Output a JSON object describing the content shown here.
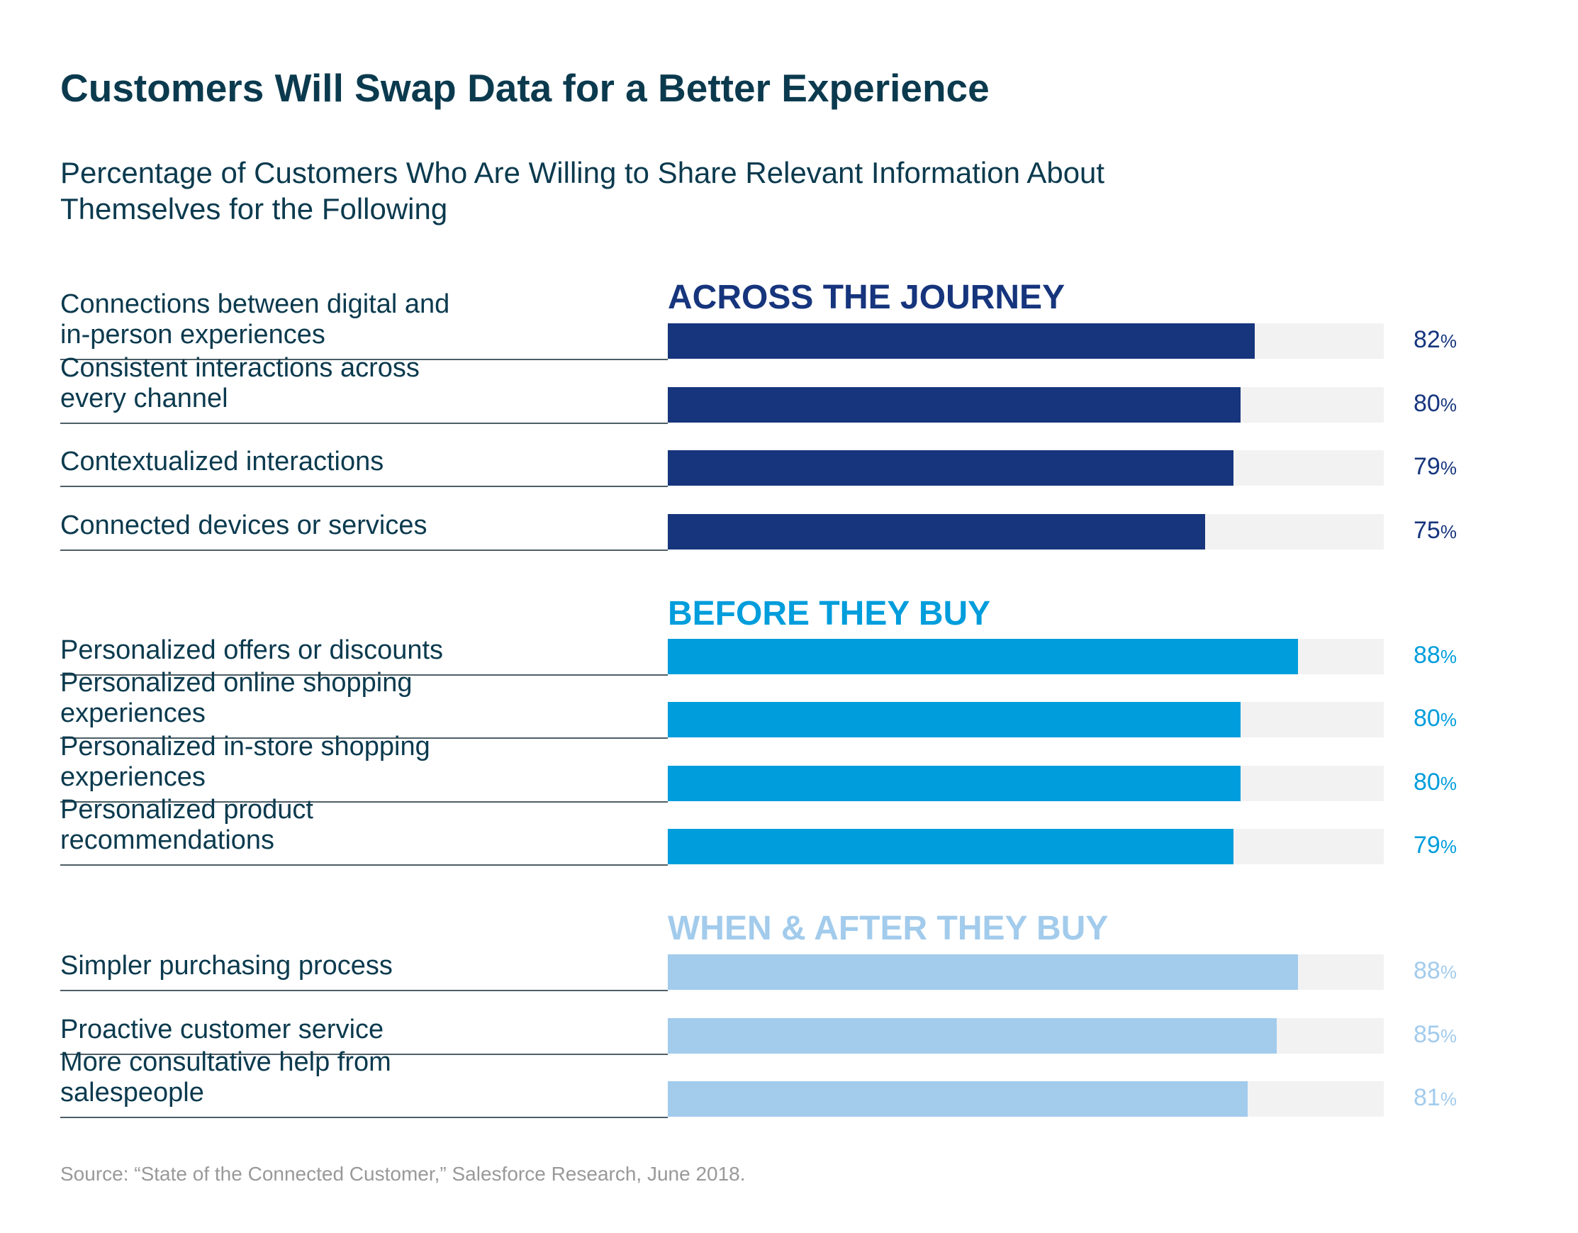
{
  "title": "Customers Will Swap Data for a Better Experience",
  "subtitle": "Percentage of Customers Who Are Willing to Share Relevant Information About Themselves for the Following",
  "source": "Source: “State of the Connected Customer,” Salesforce Research, June 2018.",
  "chart_data": {
    "type": "bar",
    "orientation": "horizontal",
    "value_range": [
      0,
      100
    ],
    "unit": "%",
    "groups": [
      {
        "name": "ACROSS THE JOURNEY",
        "color": "#16357d",
        "items": [
          {
            "label": "Connections between digital and in-person experiences",
            "value": 82,
            "display": "82"
          },
          {
            "label": "Consistent interactions across every channel",
            "value": 80,
            "display": "80"
          },
          {
            "label": "Contextualized interactions",
            "value": 79,
            "display": "79"
          },
          {
            "label": "Connected devices or services",
            "value": 75,
            "display": "75"
          }
        ]
      },
      {
        "name": "BEFORE THEY BUY",
        "color": "#009ddc",
        "items": [
          {
            "label": "Personalized offers or discounts",
            "value": 88,
            "display": "88"
          },
          {
            "label": "Personalized online shopping experiences",
            "value": 80,
            "display": "80"
          },
          {
            "label": "Personalized in-store shopping experiences",
            "value": 80,
            "display": "80"
          },
          {
            "label": "Personalized product recommendations",
            "value": 79,
            "display": "79"
          }
        ]
      },
      {
        "name": "WHEN & AFTER THEY BUY",
        "color": "#a2cbec",
        "items": [
          {
            "label": "Simpler purchasing process",
            "value": 88,
            "display": "88"
          },
          {
            "label": "Proactive customer service",
            "value": 85,
            "display": "85"
          },
          {
            "label": "More consultative help from salespeople",
            "value": 81,
            "display": "81"
          }
        ]
      }
    ]
  }
}
